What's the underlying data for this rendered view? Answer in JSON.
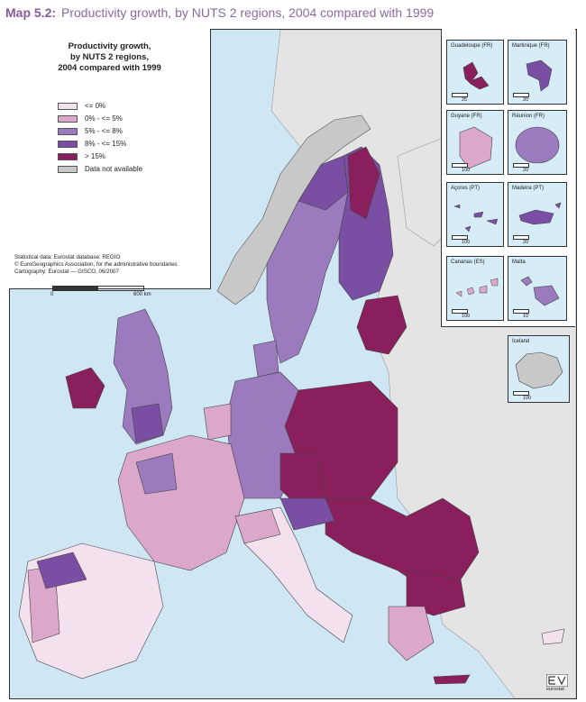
{
  "title": {
    "label": "Map 5.2:",
    "text": "Productivity growth, by NUTS 2 regions, 2004 compared with 1999"
  },
  "legend": {
    "title_lines": [
      "Productivity growth,",
      "by NUTS 2 regions,",
      "2004 compared with 1999"
    ],
    "classes": [
      {
        "label": "<= 0%",
        "color": "#f3e2ee"
      },
      {
        "label": "0% - <= 5%",
        "color": "#dba8cc"
      },
      {
        "label": "5% - <= 8%",
        "color": "#9b7bbe"
      },
      {
        "label": "8% - <= 15%",
        "color": "#7a4ea3"
      },
      {
        "label": "> 15%",
        "color": "#8a1f5e"
      },
      {
        "label": "Data not available",
        "color": "#c8c8c8"
      }
    ]
  },
  "source": {
    "line1": "Statistical data: Eurostat database: REGIO",
    "line2": "© EuroGeographics Association, for the administrative boundaries",
    "line3": "Cartography: Eurostat — GISCO, 06/2007"
  },
  "scale": {
    "start": "0",
    "end": "600 km"
  },
  "insets": [
    {
      "name": "Guadeloupe (FR)",
      "scale": "25",
      "color": "#8a1f5e"
    },
    {
      "name": "Martinique (FR)",
      "scale": "20",
      "color": "#7a4ea3"
    },
    {
      "name": "Guyane (FR)",
      "scale": "100",
      "color": "#dba8cc"
    },
    {
      "name": "Réunion (FR)",
      "scale": "20",
      "color": "#9b7bbe"
    },
    {
      "name": "Açores (PT)",
      "scale": "100",
      "color": "#7a4ea3"
    },
    {
      "name": "Madeira (PT)",
      "scale": "20",
      "color": "#7a4ea3"
    },
    {
      "name": "Canarias (ES)",
      "scale": "100",
      "color": "#dba8cc"
    },
    {
      "name": "Malta",
      "scale": "10",
      "color": "#9b7bbe"
    },
    {
      "name": "Iceland",
      "scale": "100",
      "color": "#c8c8c8"
    }
  ],
  "colors": {
    "sea": "#cfe7f5",
    "non_eu_land": "#e4e4e4",
    "border": "#333333"
  },
  "logo": {
    "text": "eurostat"
  }
}
